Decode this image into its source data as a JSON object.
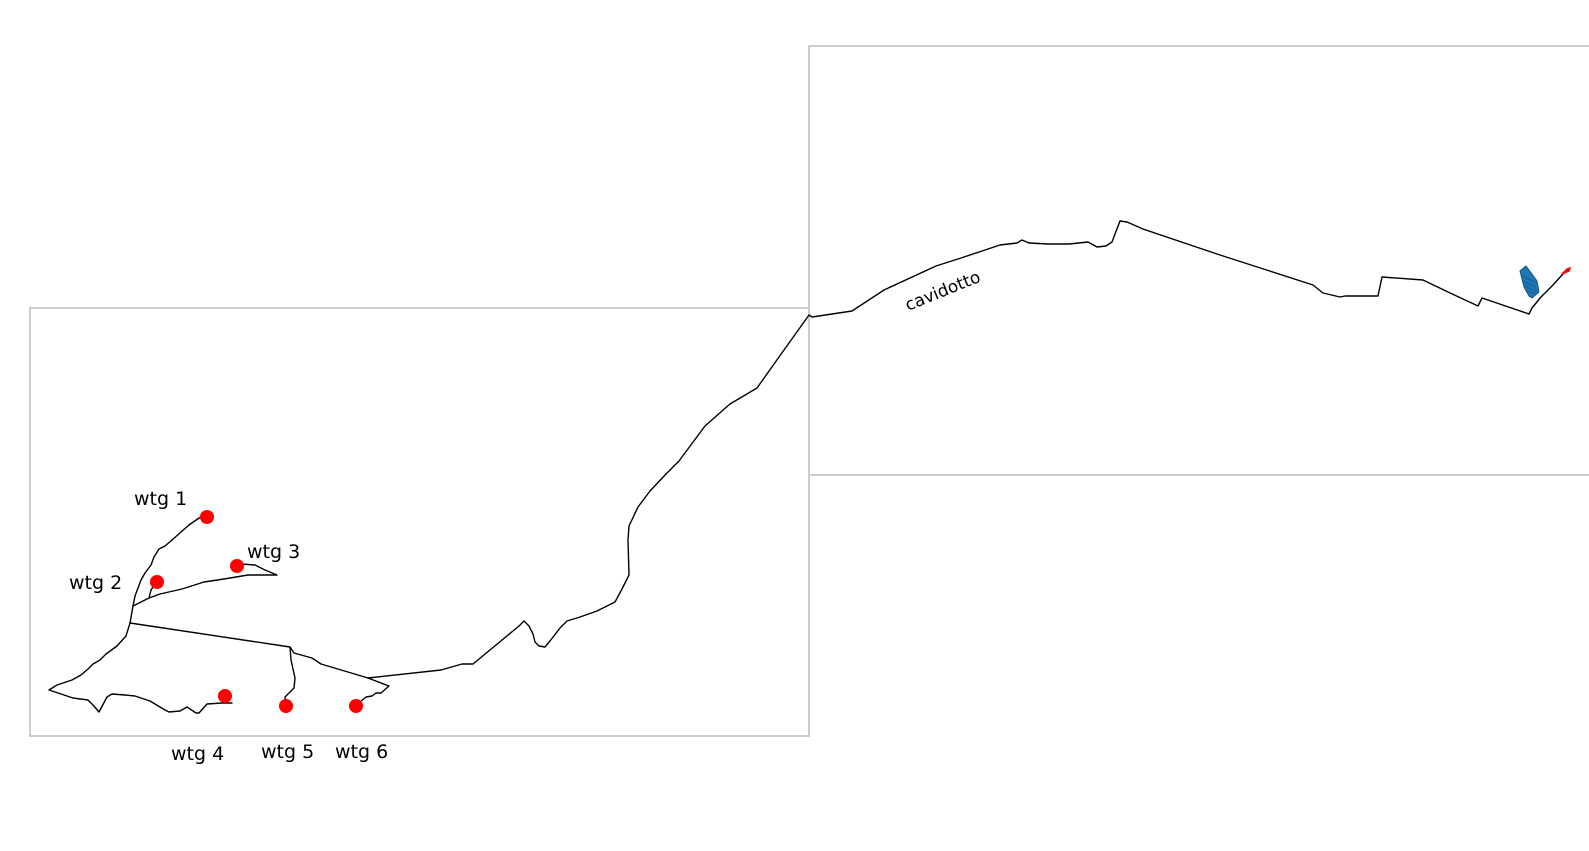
{
  "colors": {
    "frame": "#cccccc",
    "cable": "#000000",
    "turbine": "#ff0000",
    "substation": "#1f77b4",
    "background": "#ffffff"
  },
  "map": {
    "cable_label": "cavidotto",
    "turbines": [
      {
        "label": "wtg 1"
      },
      {
        "label": "wtg 2"
      },
      {
        "label": "wtg 3"
      },
      {
        "label": "wtg 4"
      },
      {
        "label": "wtg 5"
      },
      {
        "label": "wtg 6"
      }
    ]
  }
}
